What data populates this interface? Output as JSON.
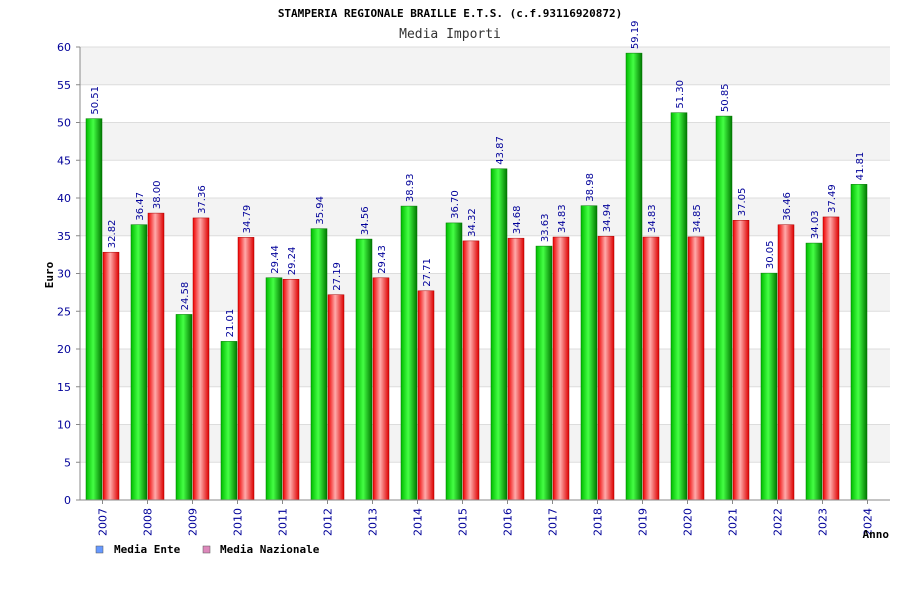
{
  "chart_data": {
    "type": "bar",
    "title": "STAMPERIA REGIONALE BRAILLE E.T.S. (c.f.93116920872)",
    "subtitle": "Media Importi",
    "xlabel": "Anno",
    "ylabel": "Euro",
    "ylim": [
      0,
      60
    ],
    "yticks": [
      0,
      5,
      10,
      15,
      20,
      25,
      30,
      35,
      40,
      45,
      50,
      55,
      60
    ],
    "categories": [
      "2007",
      "2008",
      "2009",
      "2010",
      "2011",
      "2012",
      "2013",
      "2014",
      "2015",
      "2016",
      "2017",
      "2018",
      "2019",
      "2020",
      "2021",
      "2022",
      "2023",
      "2024"
    ],
    "series": [
      {
        "name": "Media Ente",
        "color": "#00aa00",
        "legend_color": "#6699ff",
        "values": [
          50.51,
          36.47,
          24.58,
          21.01,
          29.44,
          35.94,
          34.56,
          38.93,
          36.7,
          43.87,
          33.63,
          38.98,
          59.19,
          51.3,
          50.85,
          30.05,
          34.03,
          41.81
        ],
        "labels": [
          "50.51",
          "36.47",
          "24.58",
          "21.01",
          "29.44",
          "35.94",
          "34.56",
          "38.93",
          "36.70",
          "43.87",
          "33.63",
          "38.98",
          "59.19",
          "51.30",
          "50.85",
          "30.05",
          "34.03",
          "41.81"
        ]
      },
      {
        "name": "Media Nazionale",
        "color": "#ee1111",
        "legend_color": "#dd88bb",
        "values": [
          32.82,
          38.0,
          37.36,
          34.79,
          29.24,
          27.19,
          29.43,
          27.71,
          34.32,
          34.68,
          34.83,
          34.94,
          34.83,
          34.85,
          37.05,
          36.46,
          37.49,
          null
        ],
        "labels": [
          "32.82",
          "38.00",
          "37.36",
          "34.79",
          "29.24",
          "27.19",
          "29.43",
          "27.71",
          "34.32",
          "34.68",
          "34.83",
          "34.94",
          "34.83",
          "34.85",
          "37.05",
          "36.46",
          "37.49",
          null
        ]
      }
    ],
    "grid": true,
    "legend_position": "bottom-left"
  }
}
